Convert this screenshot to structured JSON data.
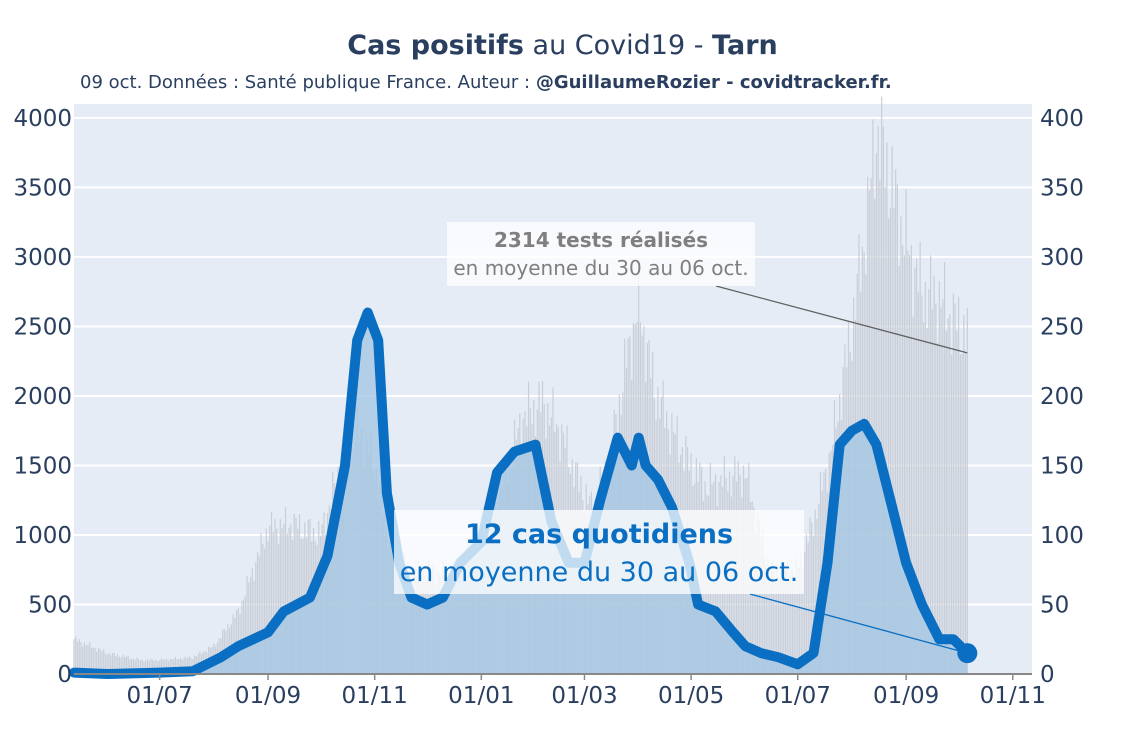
{
  "title": {
    "bold1": "Cas positifs",
    "mid": " au Covid19 - ",
    "bold2": "Tarn"
  },
  "subtitle": {
    "text": "09 oct. Données : Santé publique France. Auteur : ",
    "bold": "@GuillaumeRozier - covidtracker.fr."
  },
  "annotations": {
    "tests_line1": "2314 tests réalisés",
    "tests_line2": "en moyenne du 30 au 06 oct.",
    "cases_line1": "12 cas quotidiens",
    "cases_line2": "en moyenne du 30 au 06 oct."
  },
  "colors": {
    "cases_line": "#0a6fc2",
    "cases_fill": "#a6c8e4",
    "tests_bars": "#c8cdd6",
    "plot_bg": "#e5ecf6",
    "text": "#2a3f5f"
  },
  "chart_data": {
    "type": "line",
    "x_tick_labels": [
      "01/07",
      "01/09",
      "01/11",
      "01/01",
      "01/03",
      "01/05",
      "01/07",
      "01/09",
      "01/11"
    ],
    "x_tick_dates": [
      "2020-07-01",
      "2020-09-01",
      "2020-11-01",
      "2021-01-01",
      "2021-03-01",
      "2021-05-01",
      "2021-07-01",
      "2021-09-01",
      "2021-11-01"
    ],
    "xlim": [
      "2020-05-13",
      "2021-11-12"
    ],
    "y_left": {
      "label": "",
      "ticks": [
        0,
        500,
        1000,
        1500,
        2000,
        2500,
        3000,
        3500,
        4000
      ],
      "range": [
        0,
        4100
      ]
    },
    "y_right": {
      "label": "",
      "ticks": [
        0,
        50,
        100,
        150,
        200,
        250,
        300,
        350,
        400
      ],
      "range": [
        0,
        410
      ]
    },
    "grid": true,
    "series": [
      {
        "name": "",
        "axis": "right",
        "style": "bars",
        "x": [
          "2020-05-13",
          "2020-06-01",
          "2020-06-20",
          "2020-07-01",
          "2020-07-20",
          "2020-08-01",
          "2020-08-15",
          "2020-09-01",
          "2020-09-15",
          "2020-10-01",
          "2020-10-15",
          "2020-10-25",
          "2020-11-01",
          "2020-11-10",
          "2020-11-20",
          "2020-12-01",
          "2020-12-15",
          "2020-12-25",
          "2021-01-05",
          "2021-01-15",
          "2021-01-25",
          "2021-02-05",
          "2021-02-15",
          "2021-02-25",
          "2021-03-05",
          "2021-03-15",
          "2021-03-25",
          "2021-04-01",
          "2021-04-10",
          "2021-04-20",
          "2021-05-01",
          "2021-05-10",
          "2021-05-20",
          "2021-06-01",
          "2021-06-15",
          "2021-07-01",
          "2021-07-10",
          "2021-07-20",
          "2021-08-01",
          "2021-08-10",
          "2021-08-15",
          "2021-08-20",
          "2021-09-01",
          "2021-09-10",
          "2021-09-20",
          "2021-10-01",
          "2021-10-06"
        ],
        "values": [
          25,
          15,
          10,
          10,
          12,
          20,
          45,
          105,
          108,
          100,
          160,
          175,
          150,
          95,
          75,
          75,
          70,
          90,
          115,
          145,
          185,
          195,
          175,
          140,
          120,
          150,
          225,
          265,
          205,
          175,
          150,
          135,
          140,
          145,
          75,
          75,
          110,
          160,
          250,
          330,
          390,
          370,
          310,
          275,
          270,
          250,
          245
        ]
      },
      {
        "name": "",
        "axis": "left",
        "style": "line",
        "x": [
          "2020-05-13",
          "2020-06-01",
          "2020-07-01",
          "2020-07-20",
          "2020-08-05",
          "2020-08-15",
          "2020-09-01",
          "2020-09-10",
          "2020-09-25",
          "2020-10-05",
          "2020-10-15",
          "2020-10-22",
          "2020-10-28",
          "2020-11-03",
          "2020-11-08",
          "2020-11-15",
          "2020-11-22",
          "2020-12-01",
          "2020-12-10",
          "2020-12-20",
          "2021-01-01",
          "2021-01-10",
          "2021-01-20",
          "2021-02-01",
          "2021-02-10",
          "2021-02-20",
          "2021-03-01",
          "2021-03-10",
          "2021-03-20",
          "2021-03-28",
          "2021-04-01",
          "2021-04-05",
          "2021-04-12",
          "2021-04-20",
          "2021-04-30",
          "2021-05-05",
          "2021-05-15",
          "2021-05-25",
          "2021-06-01",
          "2021-06-10",
          "2021-06-20",
          "2021-07-01",
          "2021-07-10",
          "2021-07-18",
          "2021-07-25",
          "2021-08-01",
          "2021-08-08",
          "2021-08-15",
          "2021-08-25",
          "2021-09-01",
          "2021-09-10",
          "2021-09-20",
          "2021-09-28",
          "2021-10-06"
        ],
        "values": [
          10,
          0,
          10,
          20,
          120,
          200,
          300,
          450,
          550,
          850,
          1500,
          2400,
          2600,
          2400,
          1300,
          800,
          550,
          500,
          550,
          800,
          950,
          1450,
          1600,
          1650,
          1100,
          800,
          800,
          1250,
          1700,
          1500,
          1700,
          1500,
          1400,
          1200,
          800,
          500,
          450,
          300,
          200,
          150,
          120,
          70,
          150,
          800,
          1650,
          1750,
          1800,
          1650,
          1150,
          800,
          500,
          250,
          250,
          150
        ]
      }
    ],
    "annotations": [
      {
        "text": "2314 tests réalisés en moyenne du 30 au 06 oct.",
        "x": "2021-10-06",
        "y": 231,
        "axis": "right"
      },
      {
        "text": "12 cas quotidiens en moyenne du 30 au 06 oct.",
        "x": "2021-10-06",
        "y": 150,
        "axis": "left"
      }
    ]
  }
}
